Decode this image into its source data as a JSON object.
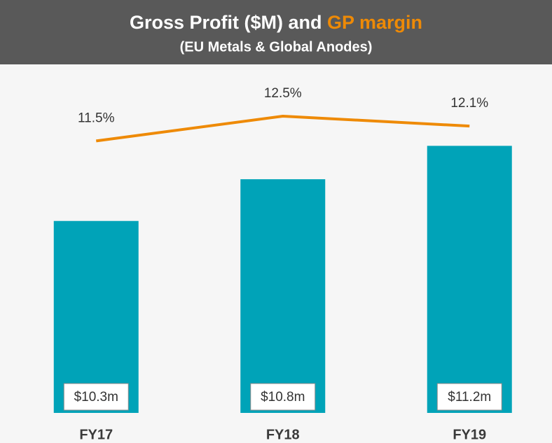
{
  "chart_data": {
    "type": "bar_line",
    "title": "Gross Profit ($M) and",
    "subtitle": "(EU Metals & Global Anodes)",
    "categories": [
      "FY17",
      "FY18",
      "FY19"
    ],
    "series": [
      {
        "color": "#00a3b8",
        "values": [
          10.3,
          10.8,
          11.2
        ],
        "value_labels": [
          "$10.3m",
          "$10.8m",
          "$11.2m"
        ]
      },
      {
        "name": "GP margin",
        "color": "#ee8a06",
        "axis": "y2",
        "values": [
          11.5,
          12.5,
          12.1
        ],
        "value_labels": [
          "11.5%",
          "12.5%",
          "12.1%"
        ]
      }
    ],
    "ylim": [
      8,
      12
    ],
    "y2lim": [
      0.5,
      14
    ]
  }
}
